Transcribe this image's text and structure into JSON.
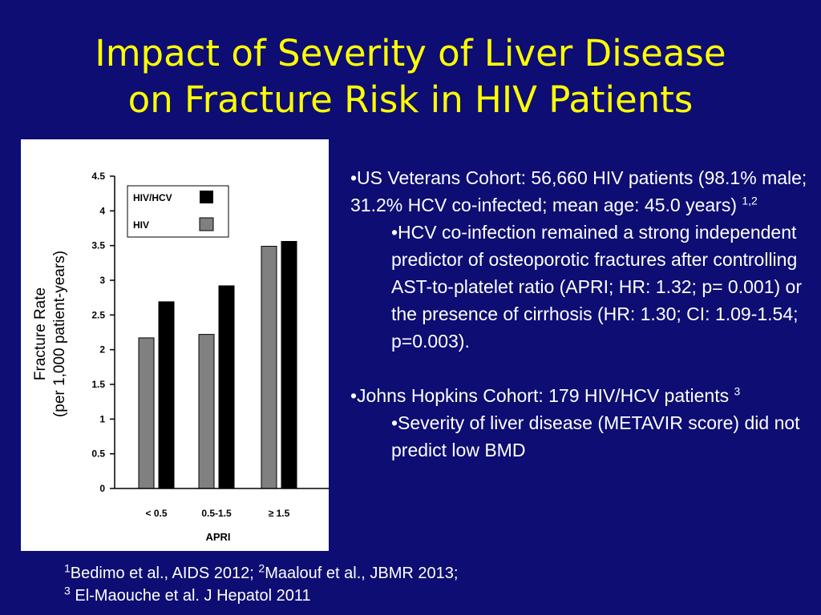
{
  "slide": {
    "title_line1": "Impact of Severity of Liver Disease",
    "title_line2": "on Fracture Risk in HIV Patients"
  },
  "colors": {
    "background": "#0d0d73",
    "title": "#ffff00",
    "text": "#ffffff",
    "hiv_hcv": "#000000",
    "hiv": "#808080"
  },
  "chart_data": {
    "type": "bar",
    "categories": [
      "< 0.5",
      "0.5-1.5",
      "≥ 1.5"
    ],
    "series": [
      {
        "name": "HIV",
        "values": [
          2.17,
          2.22,
          3.49
        ],
        "color": "#808080"
      },
      {
        "name": "HIV/HCV",
        "values": [
          2.69,
          2.92,
          3.56
        ],
        "color": "#000000"
      }
    ],
    "legend_order": [
      "HIV/HCV",
      "HIV"
    ],
    "ylabel_line1": "Fracture Rate",
    "ylabel_line2": "(per 1,000 patient-years)",
    "xlabel": "APRI",
    "ylim": [
      0,
      4.5
    ],
    "yticks": [
      0,
      0.5,
      1,
      1.5,
      2,
      2.5,
      3,
      3.5,
      4,
      4.5
    ],
    "ytick_labels": [
      "0",
      "0.5",
      "1",
      "1.5",
      "2",
      "2.5",
      "3",
      "3.5",
      "4",
      "4.5"
    ],
    "grid": false,
    "legend_position": "top-left"
  },
  "bullets": {
    "b1_text": "•US Veterans Cohort: 56,660 HIV patients (98.1% male; 31.2% HCV co-infected; mean age: 45.0 years) ",
    "b1_sup": "1,2",
    "b1_sub": "•HCV co-infection remained a strong independent predictor of osteoporotic fractures after controlling AST-to-platelet ratio (APRI; HR: 1.32; p= 0.001) or the presence of cirrhosis (HR: 1.30; CI: 1.09-1.54; p=0.003).",
    "b2_text": "•Johns Hopkins Cohort: 179 HIV/HCV patients ",
    "b2_sup": "3",
    "b2_sub": "•Severity of liver disease (METAVIR score) did not predict low BMD"
  },
  "references": {
    "r1_sup": "1",
    "r1_text": "Bedimo et al., AIDS 2012; ",
    "r2_sup": "2",
    "r2_text": "Maalouf et al., JBMR 2013;",
    "r3_sup": "3",
    "r3_text": " El-Maouche et al. J Hepatol 2011"
  }
}
